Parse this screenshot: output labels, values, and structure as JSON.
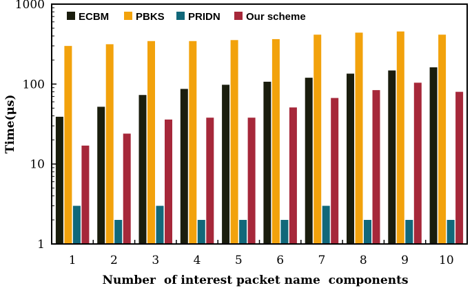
{
  "chart_data": {
    "type": "bar",
    "title": "",
    "xlabel": "Number  of interest packet name  components",
    "ylabel": "Time(μs)",
    "yscale": "log",
    "ylim": [
      1,
      1000
    ],
    "y_ticks": [
      "1",
      "10",
      "100",
      "1000"
    ],
    "y_tick_values": [
      1,
      10,
      100,
      1000
    ],
    "categories": [
      "1",
      "2",
      "3",
      "4",
      "5",
      "6",
      "7",
      "8",
      "9",
      "10"
    ],
    "grid": false,
    "legend_position": "top",
    "series": [
      {
        "name": "ECBM",
        "color": "#1a1d0d",
        "values": [
          39,
          52,
          73,
          87,
          98,
          107,
          120,
          135,
          148,
          162
        ]
      },
      {
        "name": "PBKS",
        "color": "#f2a20c",
        "values": [
          300,
          315,
          345,
          345,
          355,
          365,
          415,
          440,
          455,
          415
        ]
      },
      {
        "name": "PRIDN",
        "color": "#11687a",
        "values": [
          3,
          2,
          3,
          2,
          2,
          2,
          3,
          2,
          2,
          2
        ]
      },
      {
        "name": "Our scheme",
        "color": "#a6283a",
        "values": [
          17,
          24,
          36,
          38,
          38,
          51,
          67,
          84,
          104,
          80
        ]
      }
    ]
  }
}
